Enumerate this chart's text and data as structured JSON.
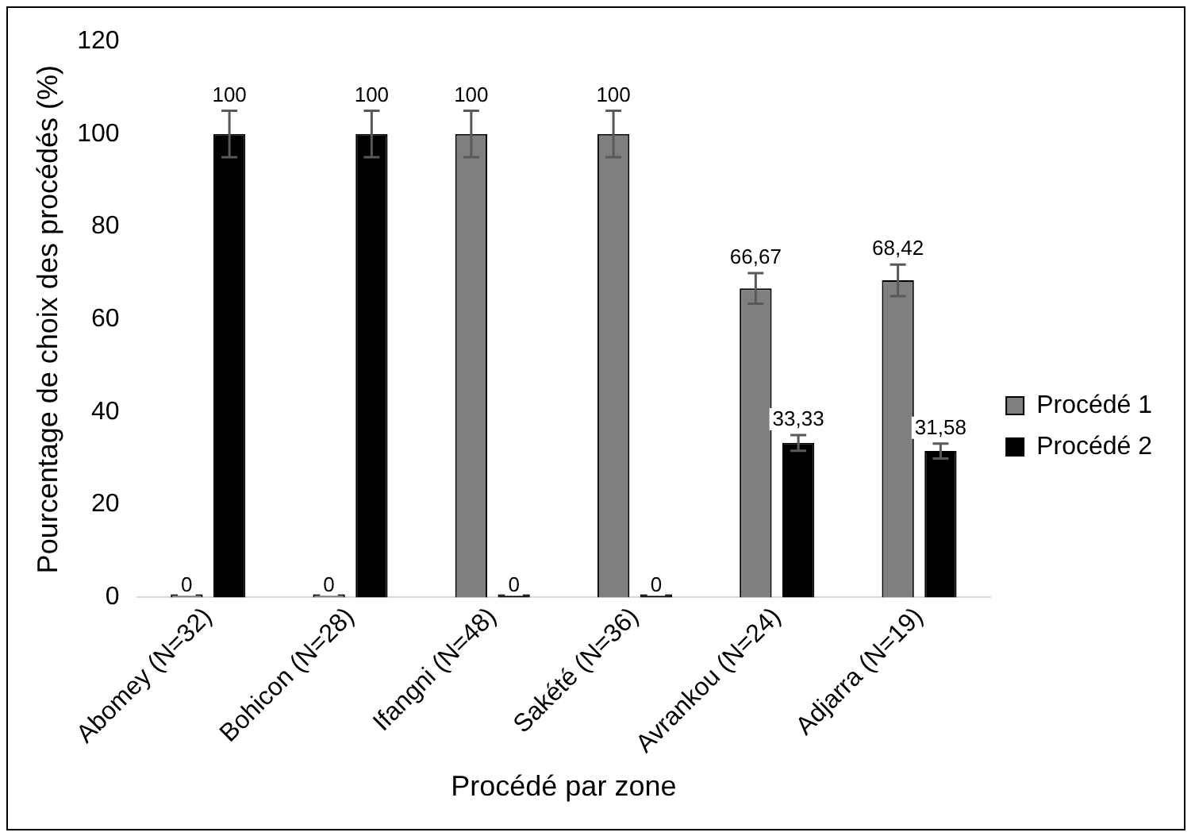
{
  "chart_data": {
    "type": "bar",
    "xlabel": "Procédé par zone",
    "ylabel": "Pourcentage de choix des procédés (%)",
    "categories": [
      "Abomey (N=32)",
      "Bohicon (N=28)",
      "Ifangni (N=48)",
      "Sakété (N=36)",
      "Avrankou (N=24)",
      "Adjarra (N=19)"
    ],
    "series": [
      {
        "name": "Procédé 1",
        "color": "#7f7f7f",
        "values": [
          0,
          0,
          100,
          100,
          66.67,
          68.42
        ],
        "errors": [
          null,
          null,
          5,
          5,
          3.3,
          3.4
        ],
        "value_labels": [
          "0",
          "0",
          "100",
          "100",
          "66,67",
          "68,42"
        ]
      },
      {
        "name": "Procédé 2",
        "color": "#000000",
        "values": [
          100,
          100,
          0,
          0,
          33.33,
          31.58
        ],
        "errors": [
          5,
          5,
          null,
          null,
          1.7,
          1.6
        ],
        "value_labels": [
          "100",
          "100",
          "0",
          "0",
          "33,33",
          "31,58"
        ]
      }
    ],
    "ylim": [
      0,
      120
    ],
    "yticks": [
      0,
      20,
      40,
      60,
      80,
      100,
      120
    ],
    "grid": false,
    "legend": "right"
  }
}
